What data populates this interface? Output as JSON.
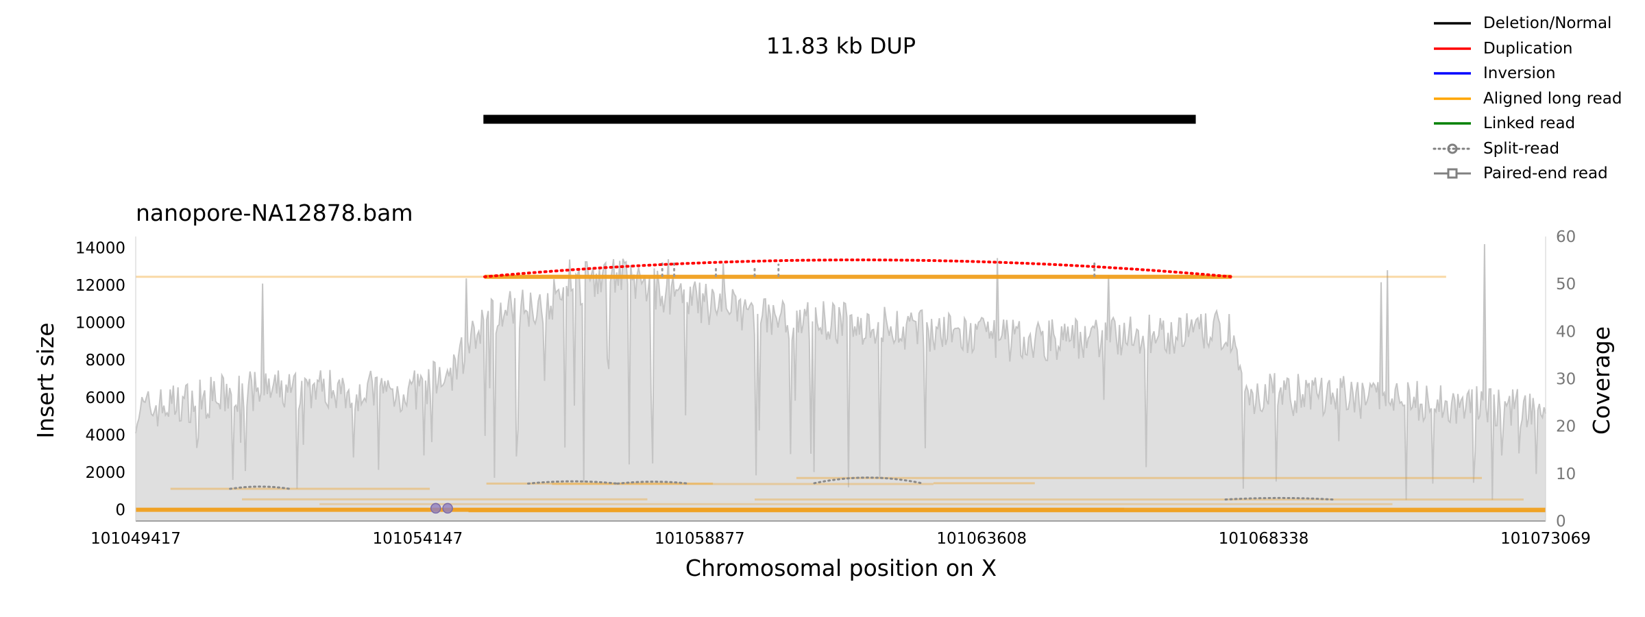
{
  "chart_data": {
    "type": "line",
    "title": "11.83 kb DUP",
    "subplot_title": "nanopore-NA12878.bam",
    "xlabel": "Chromosomal position on X",
    "ylabel_left": "Insert size",
    "ylabel_right": "Coverage",
    "x_ticks": [
      "101049417",
      "101054147",
      "101058877",
      "101063608",
      "101068338",
      "101073069"
    ],
    "y_ticks_left": [
      "0",
      "2000",
      "4000",
      "6000",
      "8000",
      "10000",
      "12000",
      "14000"
    ],
    "y_ticks_right": [
      "0",
      "10",
      "20",
      "30",
      "40",
      "50",
      "60"
    ],
    "xlim": [
      101049417,
      101073069
    ],
    "ylim_left": [
      -600,
      14600
    ],
    "ylim_right": [
      0,
      60
    ],
    "grid": false,
    "legend_position": "top-right",
    "sv_interval": {
      "start": 101055250,
      "end": 101067200,
      "color": "#000000"
    },
    "legend": [
      {
        "label": "Deletion/Normal",
        "color": "#000000",
        "style": "solid"
      },
      {
        "label": "Duplication",
        "color": "#ff0000",
        "style": "solid"
      },
      {
        "label": "Inversion",
        "color": "#0000ff",
        "style": "solid"
      },
      {
        "label": "Aligned long read",
        "color": "#ffa500",
        "style": "solid"
      },
      {
        "label": "Linked read",
        "color": "#008000",
        "style": "solid"
      },
      {
        "label": "Split-read",
        "color": "#808080",
        "style": "dotted-circle"
      },
      {
        "label": "Paired-end read",
        "color": "#808080",
        "style": "solid-square"
      }
    ],
    "duplication_arc": {
      "start": 101055270,
      "end": 101067800,
      "base": 12450,
      "peak": 13350,
      "color": "#ff0000"
    },
    "coverage_profile": [
      {
        "x": 101049417,
        "y": 23
      },
      {
        "x": 101050200,
        "y": 25
      },
      {
        "x": 101051200,
        "y": 27
      },
      {
        "x": 101052500,
        "y": 28
      },
      {
        "x": 101054000,
        "y": 27
      },
      {
        "x": 101054700,
        "y": 31
      },
      {
        "x": 101055300,
        "y": 43
      },
      {
        "x": 101056500,
        "y": 47
      },
      {
        "x": 101057300,
        "y": 53
      },
      {
        "x": 101058500,
        "y": 47
      },
      {
        "x": 101060000,
        "y": 43
      },
      {
        "x": 101062000,
        "y": 41
      },
      {
        "x": 101064000,
        "y": 38
      },
      {
        "x": 101066000,
        "y": 39
      },
      {
        "x": 101067800,
        "y": 40
      },
      {
        "x": 101068000,
        "y": 27
      },
      {
        "x": 101070000,
        "y": 26
      },
      {
        "x": 101073069,
        "y": 23
      }
    ],
    "long_reads": [
      {
        "start": 101049417,
        "end": 101071400,
        "y": 12450,
        "alpha": 0.4
      },
      {
        "start": 101055270,
        "end": 101067800,
        "y": 12450,
        "alpha": 0.95
      },
      {
        "start": 101049417,
        "end": 101073069,
        "y": 0,
        "alpha": 0.95
      },
      {
        "start": 101049417,
        "end": 101066000,
        "y": 50,
        "alpha": 0.8
      },
      {
        "start": 101055000,
        "end": 101073069,
        "y": -80,
        "alpha": 0.8
      },
      {
        "start": 101050000,
        "end": 101054350,
        "y": 1120,
        "alpha": 0.4
      },
      {
        "start": 101051200,
        "end": 101058000,
        "y": 560,
        "alpha": 0.35
      },
      {
        "start": 101055300,
        "end": 101059100,
        "y": 1400,
        "alpha": 0.4
      },
      {
        "start": 101056400,
        "end": 101062800,
        "y": 1380,
        "alpha": 0.35
      },
      {
        "start": 101060500,
        "end": 101072000,
        "y": 1700,
        "alpha": 0.4
      },
      {
        "start": 101062800,
        "end": 101064500,
        "y": 1420,
        "alpha": 0.4
      },
      {
        "start": 101059800,
        "end": 101072700,
        "y": 550,
        "alpha": 0.35
      },
      {
        "start": 101052500,
        "end": 101070500,
        "y": 300,
        "alpha": 0.3
      }
    ],
    "split_read_arcs": [
      {
        "start": 101051000,
        "end": 101052000,
        "y": 1120,
        "height": 120
      },
      {
        "start": 101056000,
        "end": 101057500,
        "y": 1400,
        "height": 120
      },
      {
        "start": 101057500,
        "end": 101058700,
        "y": 1400,
        "height": 100
      },
      {
        "start": 101060800,
        "end": 101062600,
        "y": 1420,
        "height": 300
      },
      {
        "start": 101067700,
        "end": 101069500,
        "y": 550,
        "height": 80
      }
    ],
    "split_read_points": [
      {
        "x": 101054450,
        "y": 80
      },
      {
        "x": 101054650,
        "y": 80
      }
    ],
    "split_read_verticals": [
      {
        "x": 101058250,
        "y0": 12500,
        "y1": 13300
      },
      {
        "x": 101058450,
        "y0": 12500,
        "y1": 13200
      },
      {
        "x": 101059150,
        "y0": 12500,
        "y1": 13000
      },
      {
        "x": 101059800,
        "y0": 12500,
        "y1": 13000
      },
      {
        "x": 101060200,
        "y0": 12500,
        "y1": 13100
      },
      {
        "x": 101065500,
        "y0": 12500,
        "y1": 13300
      }
    ]
  }
}
